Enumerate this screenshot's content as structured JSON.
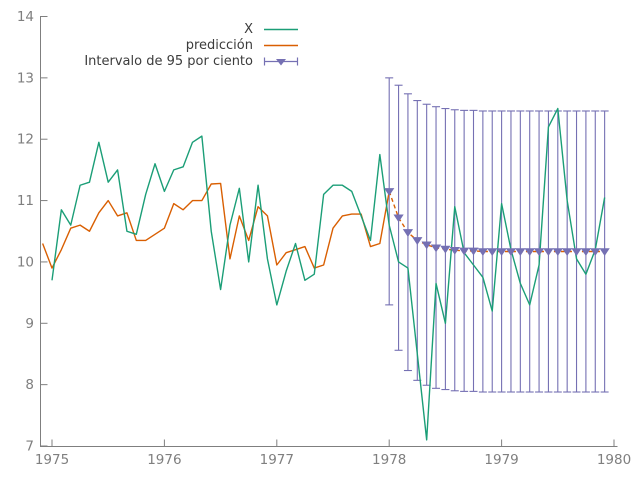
{
  "chart_data": {
    "type": "line",
    "title": "",
    "subtitle": "",
    "background": "#ffffff",
    "axis_color": "#7f7f7f",
    "tick_label_color": "#7f7f7f",
    "legend_text_color": "#3c3c3c",
    "legend_position": "top-center",
    "grid": "off",
    "x_axis": {
      "label": "",
      "ticks": [
        1975,
        1976,
        1977,
        1978,
        1979,
        1980
      ],
      "range": [
        1974.89,
        1980.06
      ]
    },
    "y_axis": {
      "label": "",
      "ticks": [
        7,
        8,
        9,
        10,
        11,
        12,
        13,
        14
      ],
      "range": [
        7,
        14
      ]
    },
    "legend": [
      {
        "label": "X",
        "kind": "line",
        "color": "#1b9e77"
      },
      {
        "label": "predicción",
        "kind": "line",
        "color": "#d95f02"
      },
      {
        "label": "Intervalo de 95 por ciento",
        "kind": "errorbar",
        "color": "#7570b3"
      }
    ],
    "series": [
      {
        "name": "X",
        "color": "#1b9e77",
        "style": "solid",
        "start": 1975.0,
        "step": "monthly",
        "values": [
          9.7,
          10.85,
          10.6,
          11.25,
          11.3,
          11.95,
          11.3,
          11.5,
          10.5,
          10.45,
          11.1,
          11.6,
          11.15,
          11.5,
          11.55,
          11.95,
          12.05,
          10.5,
          9.55,
          10.6,
          11.2,
          10.0,
          11.25,
          10.05,
          9.3,
          9.85,
          10.3,
          9.7,
          9.8,
          11.1,
          11.25,
          11.25,
          11.15,
          10.75,
          10.35,
          11.75,
          10.6,
          10.0,
          9.9,
          8.5,
          7.1,
          9.65,
          9.0,
          10.9,
          10.15,
          9.95,
          9.75,
          9.2,
          10.95,
          10.2,
          9.65,
          9.3,
          9.95,
          12.2,
          12.5,
          11.0,
          10.05,
          9.8,
          10.2,
          11.05
        ]
      },
      {
        "name": "predicción (dentro de la muestra)",
        "color": "#d95f02",
        "style": "solid",
        "start": 1974.9167,
        "step": "monthly",
        "values": [
          10.3,
          9.9,
          10.2,
          10.55,
          10.6,
          10.5,
          10.8,
          11.0,
          10.75,
          10.8,
          10.35,
          10.35,
          10.45,
          10.55,
          10.95,
          10.85,
          11.0,
          11.0,
          11.27,
          11.28,
          10.05,
          10.75,
          10.35,
          10.9,
          10.75,
          9.95,
          10.15,
          10.2,
          10.25,
          9.9,
          9.95,
          10.55,
          10.75,
          10.78,
          10.78,
          10.25,
          10.3
        ]
      }
    ],
    "forecast": {
      "name": "predicción (fuera de la muestra)",
      "line_color": "#d95f02",
      "line_style": "dashed",
      "marker": "triangle-down",
      "marker_color": "#7570b3",
      "interval_color": "#7570b3",
      "interval_label": "Intervalo de 95 por ciento",
      "start": 1978.0,
      "step": "monthly",
      "center": [
        11.15,
        10.72,
        10.48,
        10.35,
        10.28,
        10.23,
        10.21,
        10.19,
        10.18,
        10.18,
        10.17,
        10.17,
        10.17,
        10.17,
        10.17,
        10.17,
        10.17,
        10.17,
        10.17,
        10.17,
        10.17,
        10.17,
        10.17,
        10.17
      ],
      "upper": [
        13.0,
        12.88,
        12.74,
        12.63,
        12.57,
        12.53,
        12.5,
        12.48,
        12.47,
        12.47,
        12.46,
        12.46,
        12.46,
        12.46,
        12.46,
        12.46,
        12.46,
        12.46,
        12.46,
        12.46,
        12.46,
        12.46,
        12.46,
        12.46
      ],
      "lower": [
        9.3,
        8.56,
        8.23,
        8.07,
        7.99,
        7.94,
        7.92,
        7.9,
        7.89,
        7.89,
        7.88,
        7.88,
        7.88,
        7.88,
        7.88,
        7.88,
        7.88,
        7.88,
        7.88,
        7.88,
        7.88,
        7.88,
        7.88,
        7.88
      ]
    }
  }
}
